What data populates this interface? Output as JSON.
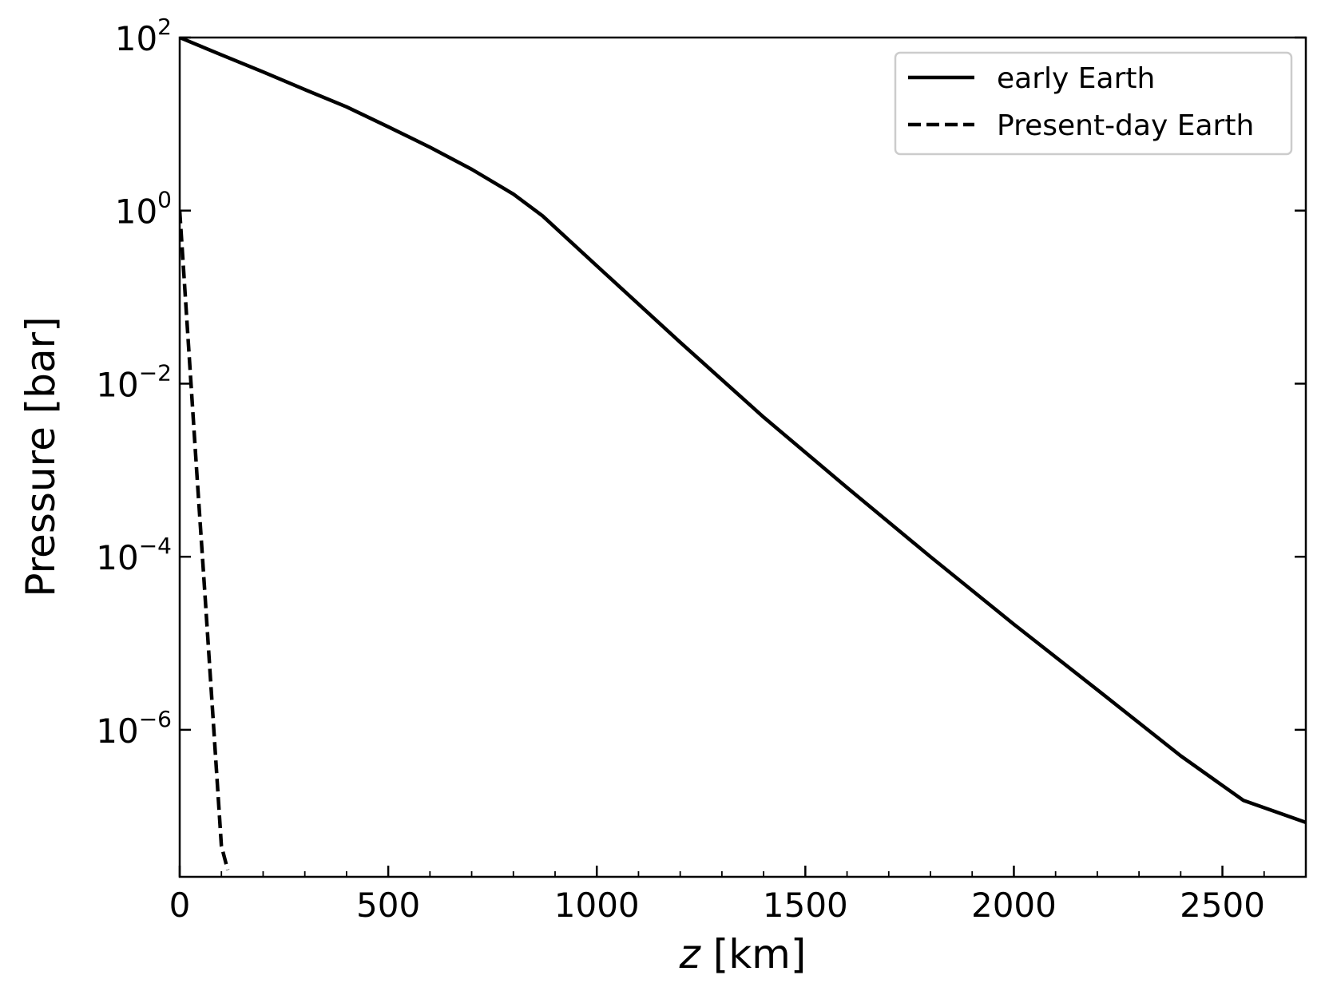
{
  "chart_data": {
    "type": "line",
    "xlabel": "z [km]",
    "xlabel_var": "z",
    "xlabel_unit": " [km]",
    "ylabel": "Pressure [bar]",
    "xlim": [
      0,
      2700
    ],
    "ylim": [
      2e-08,
      100
    ],
    "yscale": "log",
    "x_ticks": [
      0,
      500,
      1000,
      1500,
      2000,
      2500
    ],
    "x_tick_labels": [
      "0",
      "500",
      "1000",
      "1500",
      "2000",
      "2500"
    ],
    "x_minor_step": 100,
    "y_ticks": [
      {
        "value": 100,
        "base": "10",
        "exp": "2"
      },
      {
        "value": 1,
        "base": "10",
        "exp": "0"
      },
      {
        "value": 0.01,
        "base": "10",
        "exp": "−2"
      },
      {
        "value": 0.0001,
        "base": "10",
        "exp": "−4"
      },
      {
        "value": 1e-06,
        "base": "10",
        "exp": "−6"
      }
    ],
    "grid": false,
    "legend_position": "top-right",
    "series": [
      {
        "name": "early Earth",
        "style": "solid",
        "color": "#000000",
        "x": [
          0,
          100,
          200,
          300,
          400,
          500,
          600,
          700,
          800,
          870,
          1000,
          1200,
          1400,
          1600,
          1800,
          2000,
          2200,
          2400,
          2550,
          2700
        ],
        "y": [
          100,
          63,
          40,
          25,
          15.8,
          9.3,
          5.4,
          3.0,
          1.55,
          0.87,
          0.23,
          0.03,
          0.0041,
          0.00063,
          0.0001,
          1.66e-05,
          2.9e-06,
          5e-07,
          1.53e-07,
          8.5e-08
        ]
      },
      {
        "name": "Present-day Earth",
        "style": "dashed",
        "color": "#000000",
        "x": [
          0,
          20,
          40,
          60,
          80,
          100,
          115
        ],
        "y": [
          1.0,
          0.034,
          0.0011,
          4.05e-05,
          1.35e-06,
          4.55e-08,
          2.4e-08
        ]
      }
    ]
  }
}
